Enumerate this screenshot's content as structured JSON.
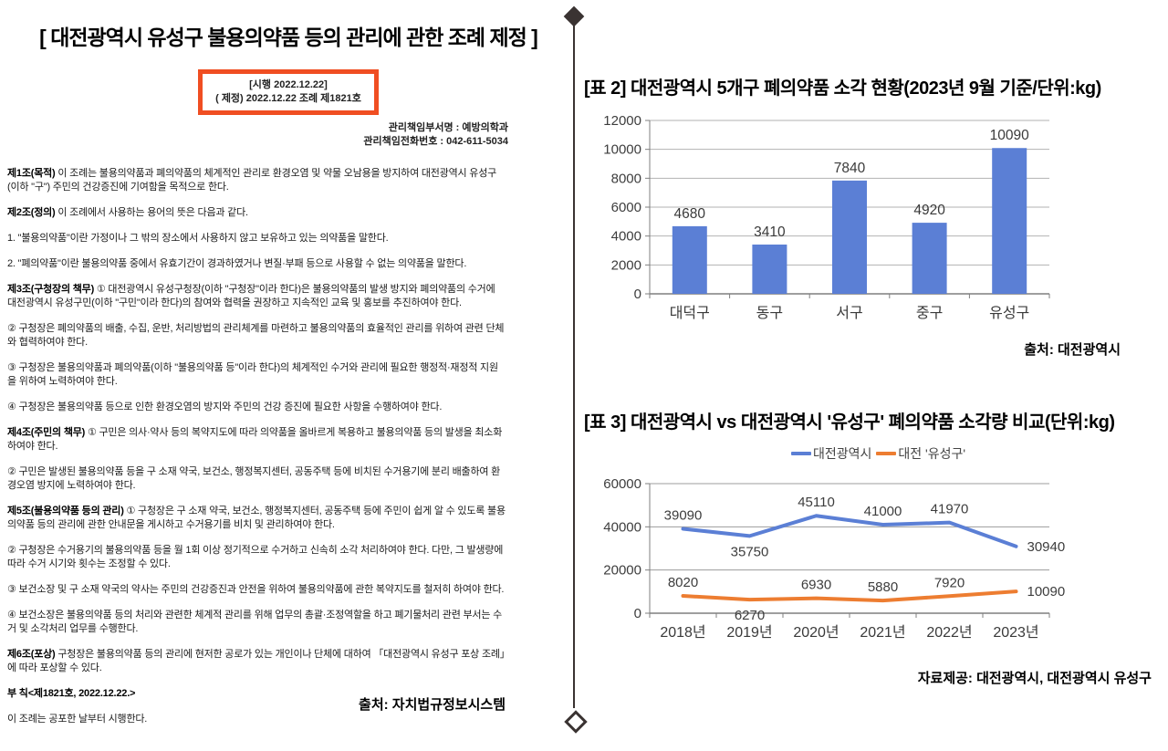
{
  "colors": {
    "stamp_border": "#F04E22",
    "divider": "#3A3332",
    "chart_blue": "#5B7FD5",
    "chart_orange": "#ED7D31"
  },
  "document": {
    "title": "[ 대전광역시 유성구 불용의약품 등의 관리에 관한 조례 제정 ]",
    "stamp_box": {
      "line1": "[시행 2022.12.22]",
      "line2": "( 제정) 2022.12.22 조례 제1821호",
      "border_color": "#F04E22"
    },
    "dept_line1": "관리책임부서명 : 예방의학과",
    "dept_line2": "관리책임전화번호 : 042-611-5034",
    "paragraphs": [
      {
        "label": "제1조(목적)",
        "text": "이 조례는 불용의약품과 폐의약품의 체계적인 관리로 환경오염 및 약물 오남용을 방지하여 대전광역시 유성구(이하 \"구\") 주민의 건강증진에 기여함을 목적으로 한다."
      },
      {
        "label": "제2조(정의)",
        "text": "이 조례에서 사용하는 용어의 뜻은 다음과 같다."
      },
      {
        "label": "",
        "text": "1. \"불용의약품\"이란 가정이나 그 밖의 장소에서 사용하지 않고 보유하고 있는 의약품을 말한다."
      },
      {
        "label": "",
        "text": "2. \"폐의약품\"이란 불용의약품 중에서 유효기간이 경과하였거나 변질·부패 등으로 사용할 수 없는 의약품을 말한다."
      },
      {
        "label": "제3조(구청장의 책무)",
        "text": "① 대전광역시 유성구청장(이하 \"구청장\"이라 한다)은 불용의약품의 발생 방지와 폐의약품의 수거에 대전광역시 유성구민(이하 \"구민\"이라 한다)의 참여와 협력을 권장하고 지속적인 교육 및 홍보를 추진하여야 한다."
      },
      {
        "label": "",
        "text": "② 구청장은 폐의약품의 배출, 수집, 운반, 처리방법의 관리체계를 마련하고 불용의약품의 효율적인 관리를 위하여 관련 단체와 협력하여야 한다."
      },
      {
        "label": "",
        "text": "③ 구청장은 불용의약품과 폐의약품(이하 \"불용의약품 등\"이라 한다)의 체계적인 수거와 관리에 필요한 행정적·재정적 지원을 위하여 노력하여야 한다."
      },
      {
        "label": "",
        "text": "④ 구청장은 불용의약품 등으로 인한 환경오염의 방지와 주민의 건강 증진에 필요한 사항을 수행하여야 한다."
      },
      {
        "label": "제4조(주민의 책무)",
        "text": "① 구민은 의사·약사 등의 복약지도에 따라 의약품을 올바르게 복용하고 불용의약품 등의 발생을 최소화하여야 한다."
      },
      {
        "label": "",
        "text": "② 구민은 발생된 불용의약품 등을 구 소재 약국, 보건소, 행정복지센터, 공동주택 등에 비치된 수거용기에 분리 배출하여 환경오염 방지에 노력하여야 한다."
      },
      {
        "label": "제5조(불용의약품 등의 관리)",
        "text": "① 구청장은 구 소재 약국, 보건소, 행정복지센터, 공동주택 등에 주민이 쉽게 알 수 있도록 불용의약품 등의 관리에 관한 안내문을 게시하고 수거용기를 비치 및 관리하여야 한다."
      },
      {
        "label": "",
        "text": "② 구청장은 수거용기의 불용의약품 등을 월 1회 이상 정기적으로 수거하고 신속히 소각 처리하여야 한다. 다만, 그 발생량에 따라 수거 시기와 횟수는 조정할 수 있다."
      },
      {
        "label": "",
        "text": "③ 보건소장 및 구 소재 약국의 약사는 주민의 건강증진과 안전을 위하여 불용의약품에 관한 복약지도를 철저히 하여야 한다."
      },
      {
        "label": "",
        "text": "④ 보건소장은 불용의약품 등의 처리와 관련한 체계적 관리를 위해 업무의 총괄·조정역할을 하고 폐기물처리 관련 부서는 수거 및 소각처리 업무를 수행한다."
      },
      {
        "label": "제6조(포상)",
        "text": "구청장은 불용의약품 등의 관리에 현저한 공로가 있는 개인이나 단체에 대하여 「대전광역시 유성구 포상 조례」에 따라 포상할 수 있다."
      },
      {
        "label": "부 칙<제1821호, 2022.12.22.>",
        "text": ""
      },
      {
        "label": "",
        "text": "이 조례는 공포한 날부터 시행한다."
      }
    ],
    "source": "출처: 자치법규정보시스템"
  },
  "chart_data": [
    {
      "type": "bar",
      "title": "[표 2] 대전광역시 5개구 폐의약품 소각 현황(2023년 9월 기준/단위:kg)",
      "categories": [
        "대덕구",
        "동구",
        "서구",
        "중구",
        "유성구"
      ],
      "values": [
        4680,
        3410,
        7840,
        4920,
        10090
      ],
      "ylim": [
        0,
        12000
      ],
      "ytick_step": 2000,
      "bar_color": "#5B7FD5",
      "grid": true,
      "legend_position": "none",
      "source": "출처: 대전광역시"
    },
    {
      "type": "line",
      "title": "[표 3] 대전광역시 vs 대전광역시 '유성구' 폐의약품 소각량 비교(단위:kg)",
      "x": [
        "2018년",
        "2019년",
        "2020년",
        "2021년",
        "2022년",
        "2023년"
      ],
      "series": [
        {
          "name": "대전광역시",
          "color": "#5B7FD5",
          "values": [
            39090,
            35750,
            45110,
            41000,
            41970,
            30940
          ]
        },
        {
          "name": "대전 '유성구'",
          "color": "#ED7D31",
          "values": [
            8020,
            6270,
            6930,
            5880,
            7920,
            10090
          ]
        }
      ],
      "ylim": [
        0,
        60000
      ],
      "ytick_step": 20000,
      "grid": true,
      "legend_position": "top",
      "source": "자료제공: 대전광역시, 대전광역시 유성구"
    }
  ]
}
